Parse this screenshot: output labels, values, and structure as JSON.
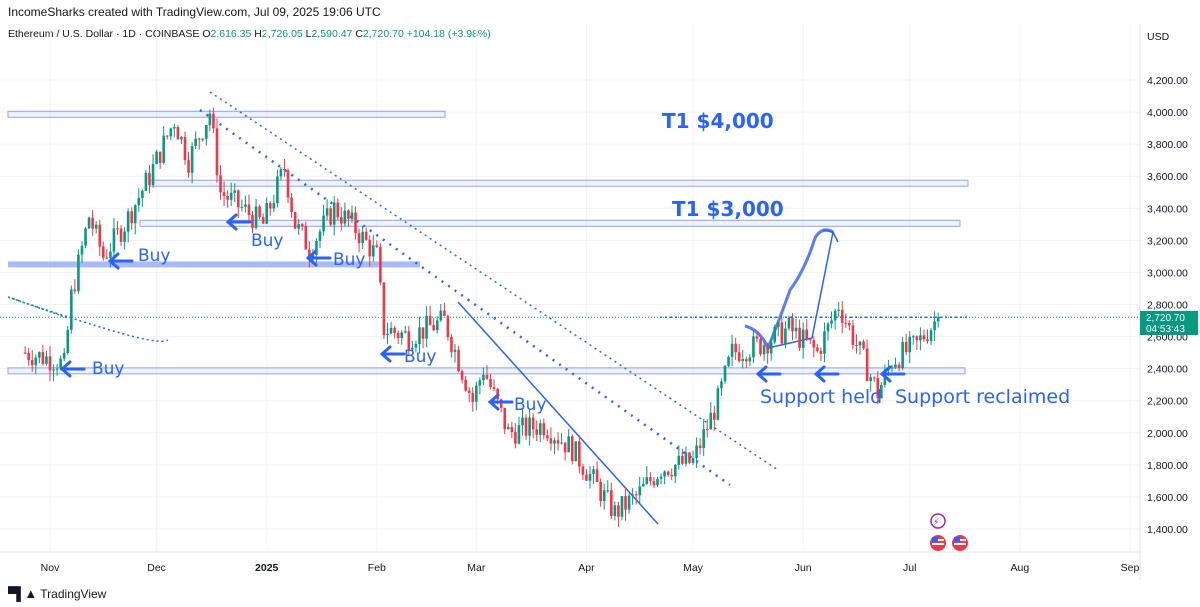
{
  "header": {
    "created_by": "IncomeSharks created with TradingView.com, Jul 09, 2025 19:06 UTC"
  },
  "legend": {
    "symbol": "Ethereum / U.S. Dollar · 1D · COINBASE",
    "o_label": "O",
    "o": "2,616.35",
    "h_label": "H",
    "h": "2,726.05",
    "l_label": "L",
    "l": "2,590.47",
    "c_label": "C",
    "c": "2,720.70",
    "change": "+104.18 (+3.98%)"
  },
  "price_axis": {
    "currency": "USD",
    "ticks": [
      "4,200.00",
      "4,000.00",
      "3,800.00",
      "3,600.00",
      "3,400.00",
      "3,200.00",
      "3,000.00",
      "2,800.00",
      "2,600.00",
      "2,400.00",
      "2,200.00",
      "2,000.00",
      "1,800.00",
      "1,600.00",
      "1,400.00"
    ],
    "current_price": "2,720.70",
    "countdown": "04:53:43"
  },
  "time_axis": {
    "ticks": [
      "Nov",
      "Dec",
      "2025",
      "Feb",
      "Mar",
      "Apr",
      "May",
      "Jun",
      "Jul",
      "Aug",
      "Sep"
    ]
  },
  "colors": {
    "up": "#089981",
    "down": "#f23645",
    "annotation": "#2962ff",
    "last_price_bg": "#089981"
  },
  "annotations": {
    "t1_4000": "T1 $4,000",
    "t1_3000": "T1 $3,000",
    "buy": "Buy",
    "support_held": "Support held",
    "support_reclaimed": "Support reclaimed"
  },
  "footer": {
    "brand": "TradingView"
  },
  "chart_data": {
    "type": "candlestick",
    "symbol": "ETH/USD",
    "interval": "1D",
    "ylim": [
      1300,
      4450
    ],
    "y_ticks": [
      1400,
      1600,
      1800,
      2000,
      2200,
      2400,
      2600,
      2800,
      3000,
      3200,
      3400,
      3600,
      3800,
      4000,
      4200
    ],
    "x_months": [
      "Nov",
      "Dec",
      "2025",
      "Feb",
      "Mar",
      "Apr",
      "May",
      "Jun",
      "Jul",
      "Aug",
      "Sep"
    ],
    "close_path": [
      [
        "2024-10-25",
        2500
      ],
      [
        "2024-11-03",
        2450
      ],
      [
        "2024-11-05",
        2420
      ],
      [
        "2024-11-07",
        2850
      ],
      [
        "2024-11-10",
        3150
      ],
      [
        "2024-11-12",
        3350
      ],
      [
        "2024-11-16",
        3100
      ],
      [
        "2024-11-22",
        3300
      ],
      [
        "2024-11-29",
        3600
      ],
      [
        "2024-12-06",
        3950
      ],
      [
        "2024-12-10",
        3700
      ],
      [
        "2024-12-16",
        4000
      ],
      [
        "2024-12-19",
        3500
      ],
      [
        "2024-12-25",
        3400
      ],
      [
        "2024-12-31",
        3300
      ],
      [
        "2025-01-06",
        3650
      ],
      [
        "2025-01-09",
        3300
      ],
      [
        "2025-01-13",
        3150
      ],
      [
        "2025-01-20",
        3400
      ],
      [
        "2025-01-25",
        3300
      ],
      [
        "2025-02-01",
        3100
      ],
      [
        "2025-02-03",
        2650
      ],
      [
        "2025-02-10",
        2600
      ],
      [
        "2025-02-20",
        2700
      ],
      [
        "2025-02-24",
        2450
      ],
      [
        "2025-02-28",
        2200
      ],
      [
        "2025-03-03",
        2400
      ],
      [
        "2025-03-10",
        2000
      ],
      [
        "2025-03-20",
        2050
      ],
      [
        "2025-03-28",
        1900
      ],
      [
        "2025-04-06",
        1600
      ],
      [
        "2025-04-09",
        1500
      ],
      [
        "2025-04-15",
        1600
      ],
      [
        "2025-04-22",
        1780
      ],
      [
        "2025-05-01",
        1820
      ],
      [
        "2025-05-08",
        2200
      ],
      [
        "2025-05-12",
        2500
      ],
      [
        "2025-05-20",
        2550
      ],
      [
        "2025-05-28",
        2650
      ],
      [
        "2025-06-05",
        2500
      ],
      [
        "2025-06-11",
        2800
      ],
      [
        "2025-06-17",
        2500
      ],
      [
        "2025-06-22",
        2250
      ],
      [
        "2025-06-26",
        2450
      ],
      [
        "2025-07-03",
        2550
      ],
      [
        "2025-07-09",
        2720.7
      ]
    ],
    "horizontal_levels": [
      2380,
      3050,
      3300,
      3550,
      3980
    ],
    "projection_target": 3250,
    "last_close": 2720.7
  }
}
